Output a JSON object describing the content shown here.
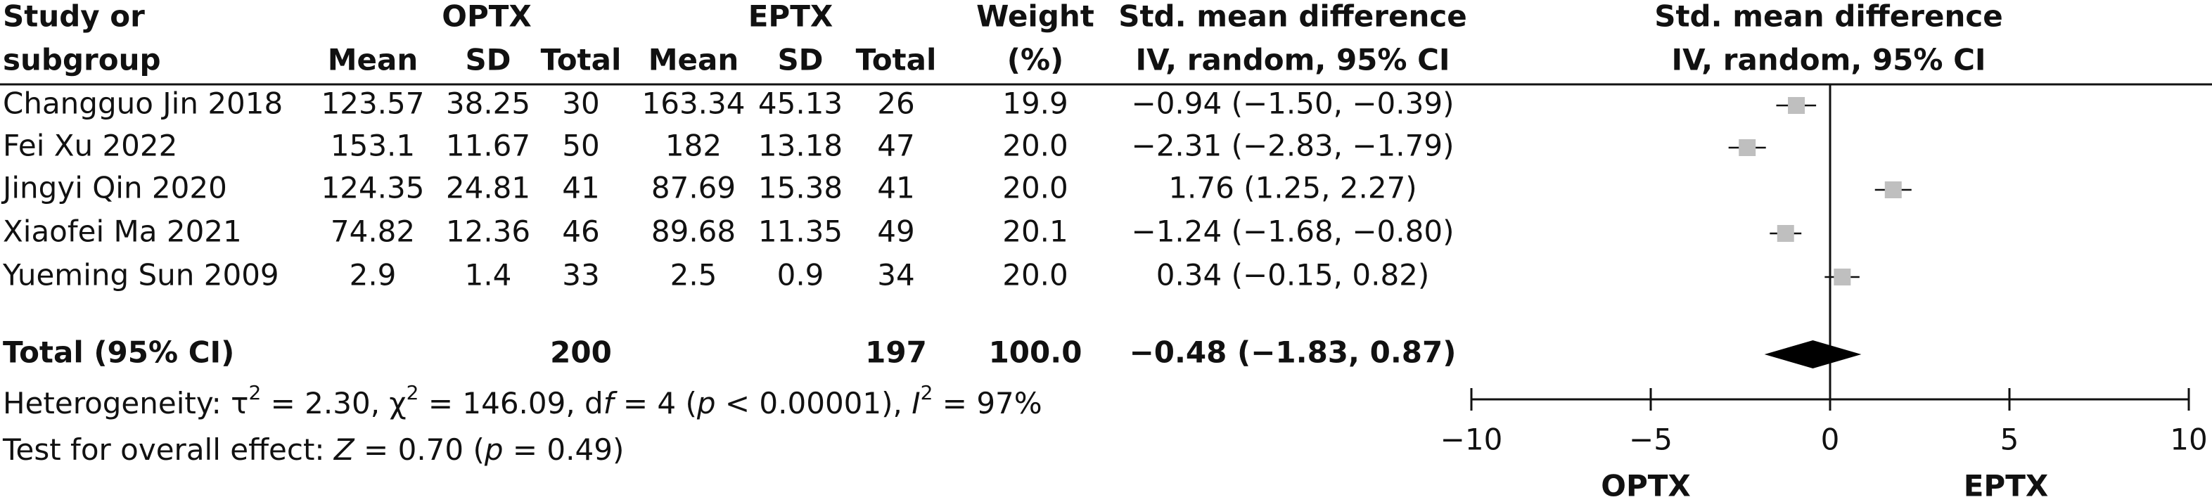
{
  "chart_data": {
    "type": "forest",
    "headers": {
      "study": [
        "Study or",
        "subgroup"
      ],
      "group1": "OPTX",
      "group2": "EPTX",
      "columns": [
        "Mean",
        "SD",
        "Total",
        "Mean",
        "SD",
        "Total"
      ],
      "weight": [
        "Weight",
        "(%)"
      ],
      "effect": [
        "Std. mean difference",
        "IV, random, 95% CI"
      ],
      "plot": [
        "Std. mean difference",
        "IV, random, 95% CI"
      ]
    },
    "studies": [
      {
        "name": "Changguo Jin 2018",
        "optx_mean": "123.57",
        "optx_sd": "38.25",
        "optx_total": "30",
        "eptx_mean": "163.34",
        "eptx_sd": "45.13",
        "eptx_total": "26",
        "weight": "19.9",
        "ci_label": "−0.94 (−1.50, −0.39)",
        "smd": -0.94,
        "lower": -1.5,
        "upper": -0.39
      },
      {
        "name": "Fei Xu 2022",
        "optx_mean": "153.1",
        "optx_sd": "11.67",
        "optx_total": "50",
        "eptx_mean": "182",
        "eptx_sd": "13.18",
        "eptx_total": "47",
        "weight": "20.0",
        "ci_label": "−2.31 (−2.83, −1.79)",
        "smd": -2.31,
        "lower": -2.83,
        "upper": -1.79
      },
      {
        "name": "Jingyi Qin 2020",
        "optx_mean": "124.35",
        "optx_sd": "24.81",
        "optx_total": "41",
        "eptx_mean": "87.69",
        "eptx_sd": "15.38",
        "eptx_total": "41",
        "weight": "20.0",
        "ci_label": "1.76 (1.25, 2.27)",
        "smd": 1.76,
        "lower": 1.25,
        "upper": 2.27
      },
      {
        "name": "Xiaofei Ma 2021",
        "optx_mean": "74.82",
        "optx_sd": "12.36",
        "optx_total": "46",
        "eptx_mean": "89.68",
        "eptx_sd": "11.35",
        "eptx_total": "49",
        "weight": "20.1",
        "ci_label": "−1.24 (−1.68, −0.80)",
        "smd": -1.24,
        "lower": -1.68,
        "upper": -0.8
      },
      {
        "name": "Yueming Sun 2009",
        "optx_mean": "2.9",
        "optx_sd": "1.4",
        "optx_total": "33",
        "eptx_mean": "2.5",
        "eptx_sd": "0.9",
        "eptx_total": "34",
        "weight": "20.0",
        "ci_label": "0.34 (−0.15, 0.82)",
        "smd": 0.34,
        "lower": -0.15,
        "upper": 0.82
      }
    ],
    "total": {
      "name": "Total (95% CI)",
      "optx_total": "200",
      "eptx_total": "197",
      "weight": "100.0",
      "ci_label": "−0.48 (−1.83, 0.87)",
      "smd": -0.48,
      "lower": -1.83,
      "upper": 0.87
    },
    "heterogeneity": [
      {
        "t": "Heterogeneity: τ"
      },
      {
        "t": "2",
        "sup": true
      },
      {
        "t": " = 2.30, χ"
      },
      {
        "t": "2",
        "sup": true
      },
      {
        "t": " = 146.09, d"
      },
      {
        "t": "f",
        "italic": true
      },
      {
        "t": " = 4 ("
      },
      {
        "t": "p",
        "italic": true
      },
      {
        "t": " < 0.00001), "
      },
      {
        "t": "I",
        "italic": true
      },
      {
        "t": "2",
        "sup": true
      },
      {
        "t": " = 97%"
      }
    ],
    "overall_effect": [
      {
        "t": "Test for overall effect: "
      },
      {
        "t": "Z",
        "italic": true
      },
      {
        "t": " = 0.70 ("
      },
      {
        "t": "p",
        "italic": true
      },
      {
        "t": " = 0.49)"
      }
    ],
    "xlim": [
      -10,
      10
    ],
    "xticks": [
      {
        "value": -10,
        "label": "−10"
      },
      {
        "value": -5,
        "label": "−5"
      },
      0,
      5,
      10
    ],
    "x_labels": [
      "OPTX",
      "EPTX"
    ],
    "marker_color": "#bfbfbf",
    "diamond_color": "#000000"
  }
}
